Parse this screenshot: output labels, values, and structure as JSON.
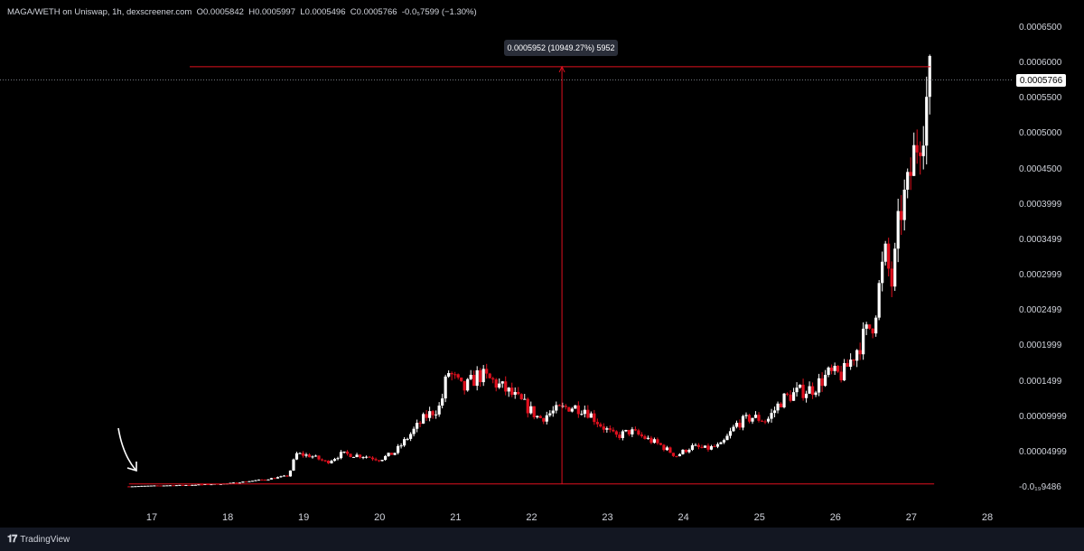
{
  "header": {
    "symbol": "MAGA/WETH on Uniswap, 1h, dexscreener.com",
    "o_label": "O",
    "o_value": "0.0005842",
    "h_label": "H",
    "h_value": "0.0005997",
    "l_label": "L",
    "l_value": "0.0005496",
    "c_label": "C",
    "c_value": "0.0005766",
    "change": "-0.0₅7599 (−1.30%)"
  },
  "tooltip": "0.0005952 (10949.27%) 5952",
  "last_price_label": "0.0005766",
  "footer_brand": "TradingView",
  "colors": {
    "up": "#ffffff",
    "down": "#e0101e",
    "measure": "#e0101e",
    "bg": "#000000"
  },
  "chart_data": {
    "type": "candlestick",
    "y_ticks": [
      "0.0006500",
      "0.0006000",
      "0.0005500",
      "0.0005000",
      "0.0004500",
      "0.0003999",
      "0.0003499",
      "0.0002999",
      "0.0002499",
      "0.0001999",
      "0.0001499",
      "0.00009999",
      "0.00004999",
      "-0.0₁₉9486"
    ],
    "y_tick_values": [
      0.00065,
      0.0006,
      0.00055,
      0.0005,
      0.00045,
      0.0004,
      0.00035,
      0.0003,
      0.00025,
      0.0002,
      0.00015,
      0.0001,
      5e-05,
      0
    ],
    "x_ticks": [
      "17",
      "18",
      "19",
      "20",
      "21",
      "22",
      "23",
      "24",
      "25",
      "26",
      "27",
      "28"
    ],
    "ylim": [
      -1e-05,
      0.00068
    ],
    "xlim": [
      16.6,
      28.4
    ],
    "measure": {
      "x": 22.4,
      "y_low": 5.4e-06,
      "y_high": 0.0005952,
      "x_start": 17.5,
      "x_end": 27.25
    },
    "last_price": 0.0005766,
    "trend_points": [
      [
        16.7,
        2e-06
      ],
      [
        17.0,
        3e-06
      ],
      [
        17.5,
        4e-06
      ],
      [
        18.0,
        6e-06
      ],
      [
        18.5,
        1.2e-05
      ],
      [
        18.8,
        1.7e-05
      ],
      [
        18.9,
        4.8e-05
      ],
      [
        19.1,
        4.5e-05
      ],
      [
        19.3,
        3.6e-05
      ],
      [
        19.5,
        4.8e-05
      ],
      [
        19.8,
        4.5e-05
      ],
      [
        20.0,
        4e-05
      ],
      [
        20.2,
        5e-05
      ],
      [
        20.4,
        7.5e-05
      ],
      [
        20.6,
        0.0001
      ],
      [
        20.8,
        0.000115
      ],
      [
        20.9,
        0.000165
      ],
      [
        21.1,
        0.000138
      ],
      [
        21.3,
        0.00016
      ],
      [
        21.5,
        0.00015
      ],
      [
        21.7,
        0.000135
      ],
      [
        21.9,
        0.000118
      ],
      [
        22.1,
        9.8e-05
      ],
      [
        22.3,
        0.000108
      ],
      [
        22.5,
        0.000115
      ],
      [
        22.7,
        0.000112
      ],
      [
        22.9,
        9e-05
      ],
      [
        23.1,
        7.2e-05
      ],
      [
        23.3,
        8e-05
      ],
      [
        23.5,
        7e-05
      ],
      [
        23.7,
        6e-05
      ],
      [
        23.9,
        4.5e-05
      ],
      [
        24.1,
        5.8e-05
      ],
      [
        24.3,
        5.5e-05
      ],
      [
        24.5,
        6e-05
      ],
      [
        24.7,
        9e-05
      ],
      [
        24.9,
        0.0001
      ],
      [
        25.1,
        9.5e-05
      ],
      [
        25.3,
        0.000125
      ],
      [
        25.5,
        0.000135
      ],
      [
        25.7,
        0.00014
      ],
      [
        25.9,
        0.00016
      ],
      [
        26.1,
        0.00016
      ],
      [
        26.3,
        0.0002
      ],
      [
        26.5,
        0.000235
      ],
      [
        26.65,
        0.00033
      ],
      [
        26.75,
        0.000285
      ],
      [
        26.85,
        0.00039
      ],
      [
        26.95,
        0.00042
      ],
      [
        27.05,
        0.00048
      ],
      [
        27.15,
        0.00052
      ],
      [
        27.25,
        0.000577
      ]
    ]
  }
}
